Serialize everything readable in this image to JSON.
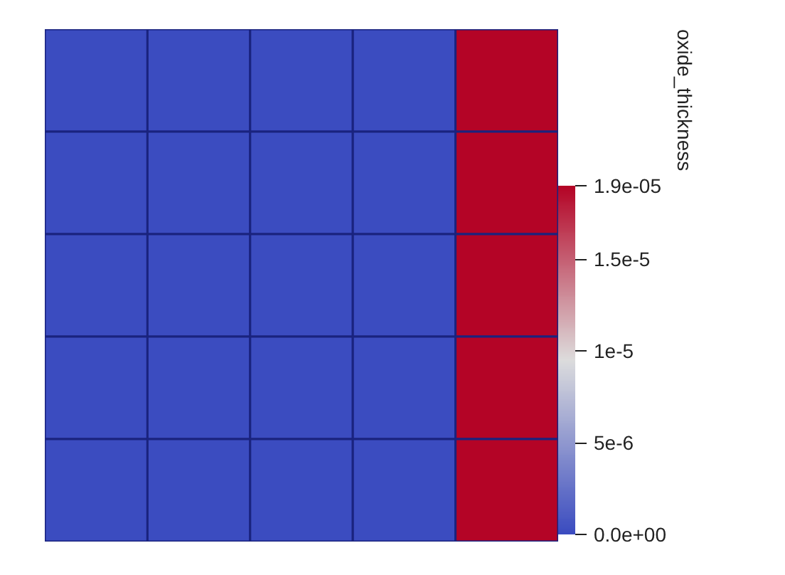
{
  "chart_data": {
    "type": "heatmap",
    "categories": [
      null,
      null,
      null,
      null,
      null
    ],
    "y_categories": [
      null,
      null,
      null,
      null,
      null
    ],
    "cells": [
      [
        0,
        0,
        0,
        0,
        1.9e-05
      ],
      [
        0,
        0,
        0,
        0,
        1.9e-05
      ],
      [
        0,
        0,
        0,
        0,
        1.9e-05
      ],
      [
        0,
        0,
        0,
        0,
        1.9e-05
      ],
      [
        0,
        0,
        0,
        0,
        1.9e-05
      ]
    ],
    "clim": [
      0,
      1.9e-05
    ],
    "cticks": [
      {
        "value": 0,
        "label": "0.0e+00"
      },
      {
        "value": 5e-06,
        "label": "5e-6"
      },
      {
        "value": 1e-05,
        "label": "1e-5"
      },
      {
        "value": 1.5e-05,
        "label": "1.5e-5"
      },
      {
        "value": 1.9e-05,
        "label": "1.9e-05"
      }
    ],
    "clabel": "oxide_thickness",
    "tick_labels": false
  }
}
